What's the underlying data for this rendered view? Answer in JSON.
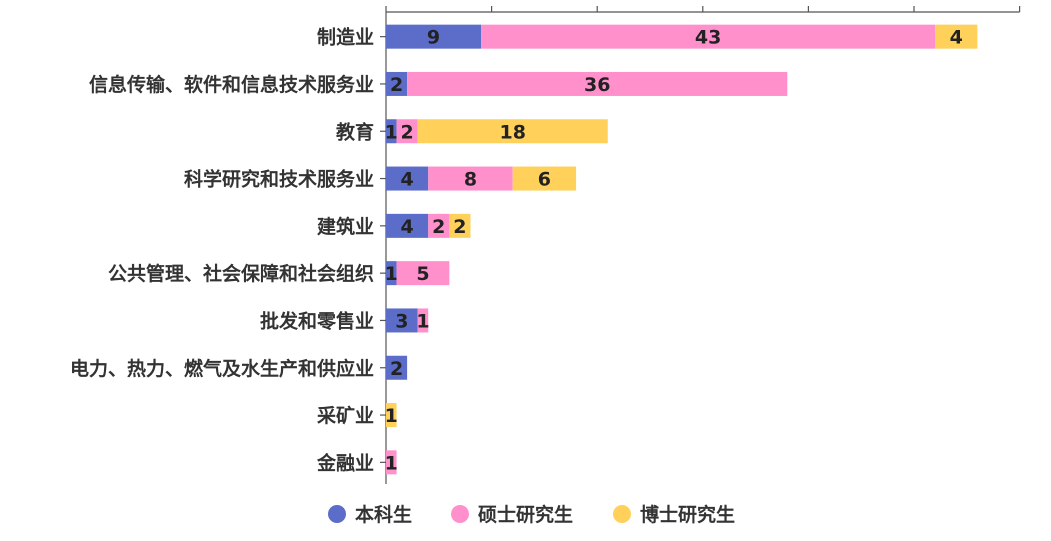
{
  "chart_data": {
    "type": "bar",
    "orientation": "horizontal",
    "stacked": true,
    "categories": [
      "制造业",
      "信息传输、软件和信息技术服务业",
      "教育",
      "科学研究和技术服务业",
      "建筑业",
      "公共管理、社会保障和社会组织",
      "批发和零售业",
      "电力、热力、燃气及水生产和供应业",
      "采矿业",
      "金融业"
    ],
    "series": [
      {
        "name": "本科生",
        "color": "#5b6dc8",
        "values": [
          9,
          2,
          1,
          4,
          4,
          1,
          3,
          2,
          0,
          0
        ]
      },
      {
        "name": "硕士研究生",
        "color": "#ff90cc",
        "values": [
          43,
          36,
          2,
          8,
          2,
          5,
          1,
          0,
          0,
          1
        ]
      },
      {
        "name": "博士研究生",
        "color": "#ffd05a",
        "values": [
          4,
          0,
          18,
          6,
          2,
          0,
          0,
          0,
          1,
          0
        ]
      }
    ],
    "xlim": [
      0,
      60
    ],
    "grid": false,
    "legend_position": "bottom"
  }
}
